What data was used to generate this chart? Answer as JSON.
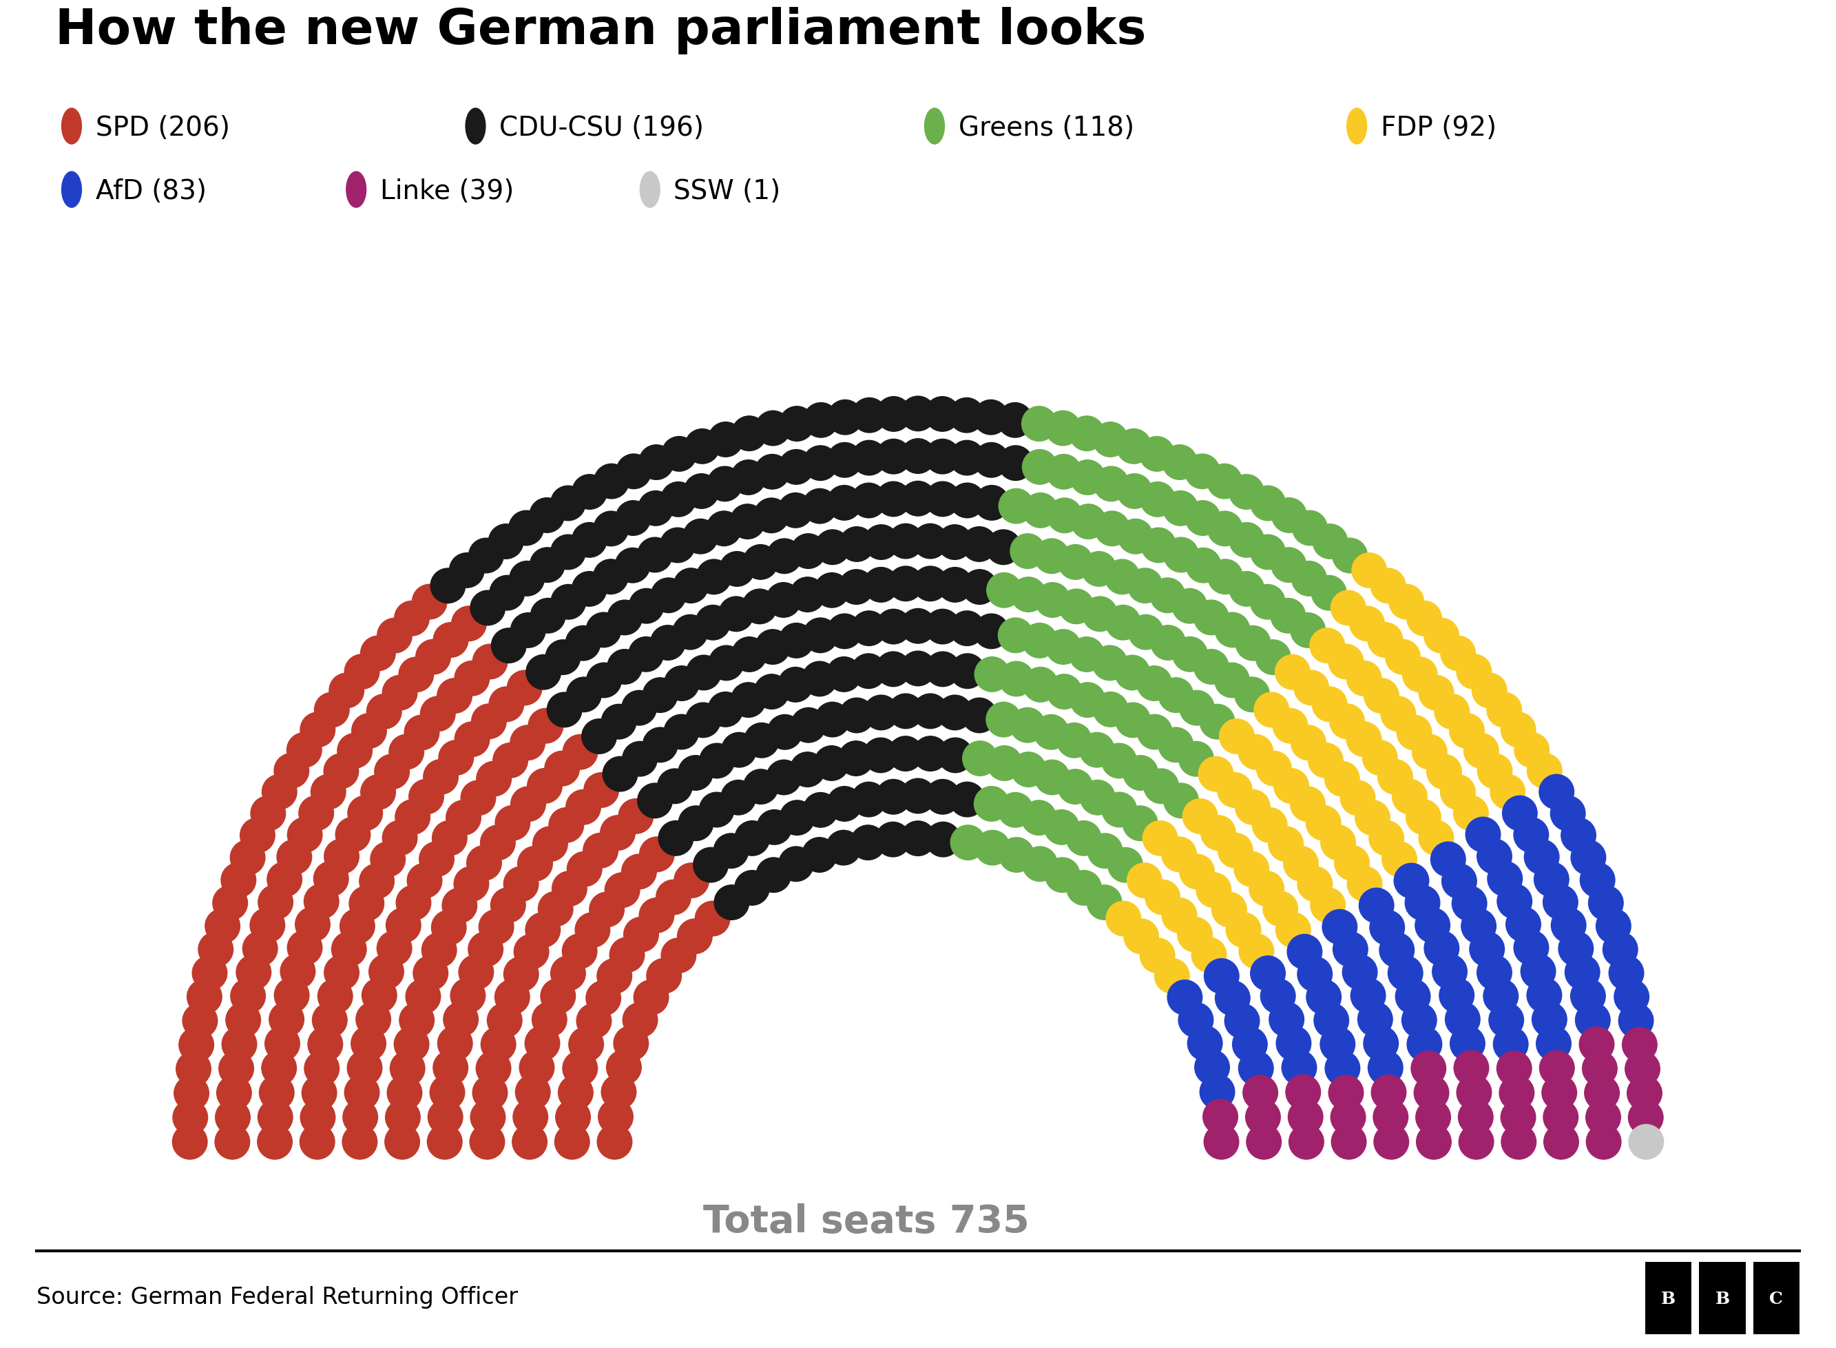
{
  "title": "How the new German parliament looks",
  "parties": [
    {
      "name": "SPD",
      "seats": 206,
      "color": "#c0392b"
    },
    {
      "name": "CDU-CSU",
      "seats": 196,
      "color": "#1a1a1a"
    },
    {
      "name": "Greens",
      "seats": 118,
      "color": "#6ab04c"
    },
    {
      "name": "FDP",
      "seats": 92,
      "color": "#f9ca24"
    },
    {
      "name": "AfD",
      "seats": 83,
      "color": "#2040c8"
    },
    {
      "name": "Linke",
      "seats": 39,
      "color": "#a0226c"
    },
    {
      "name": "SSW",
      "seats": 1,
      "color": "#c8c8c8"
    }
  ],
  "total_seats": 735,
  "source": "Source: German Federal Returning Officer",
  "legend_row1": [
    "SPD (206)",
    "CDU-CSU (196)",
    "Greens (118)",
    "FDP (92)"
  ],
  "legend_row2": [
    "AfD (83)",
    "Linke (39)",
    "SSW (1)"
  ],
  "legend_colors_row1": [
    "#c0392b",
    "#1a1a1a",
    "#6ab04c",
    "#f9ca24"
  ],
  "legend_colors_row2": [
    "#2040c8",
    "#a0226c",
    "#c8c8c8"
  ],
  "background_color": "#ffffff",
  "title_fontsize": 52,
  "legend_fontsize": 28,
  "source_fontsize": 24,
  "total_text_color": "#888888",
  "total_fontsize": 40
}
